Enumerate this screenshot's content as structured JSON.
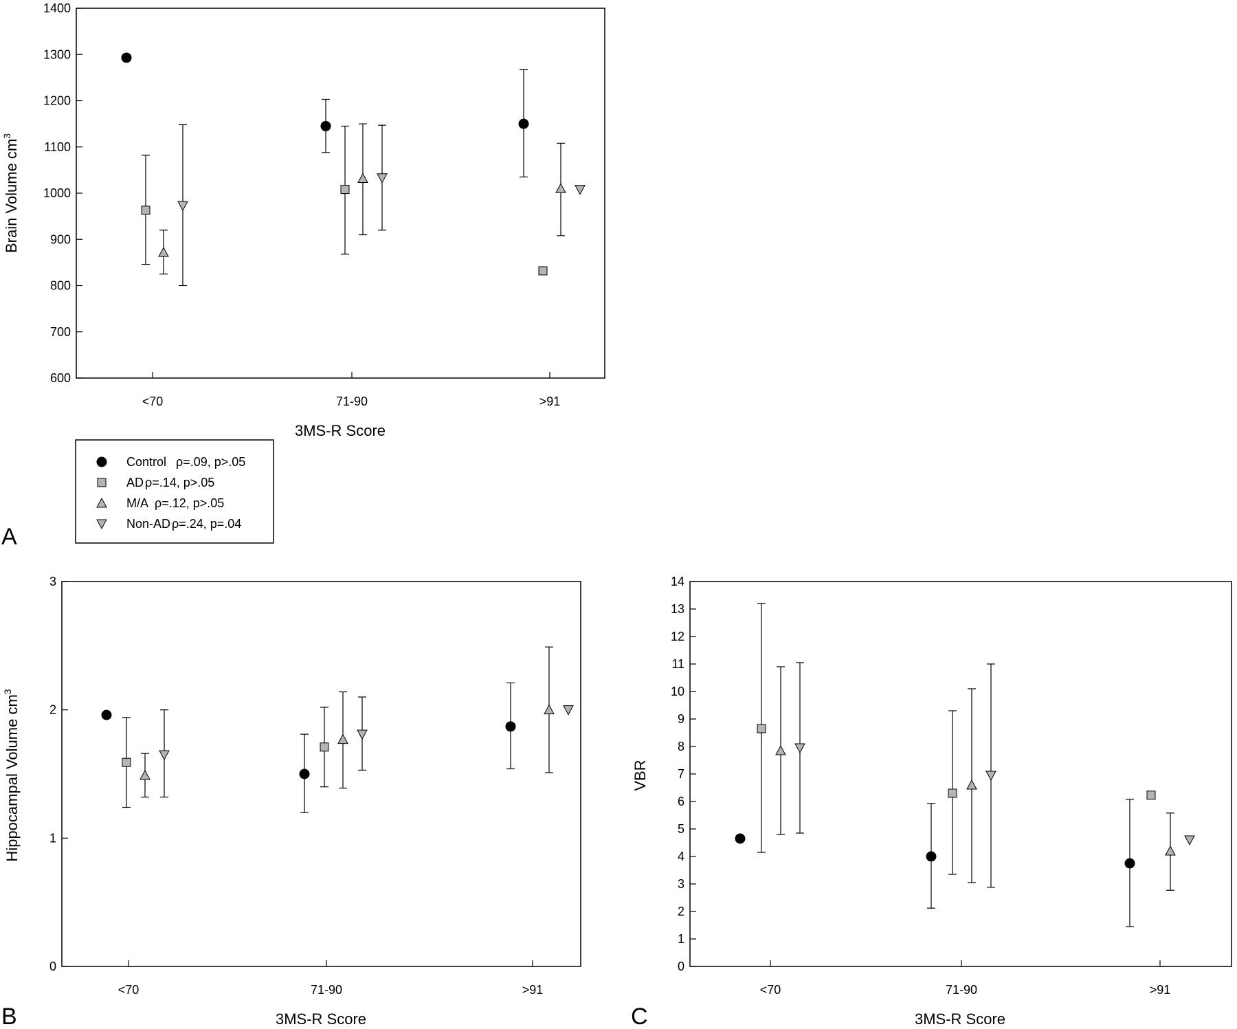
{
  "chart_data": [
    {
      "type": "scatter",
      "panel_label": "A",
      "categories": [
        "<70",
        "71-90",
        ">91"
      ],
      "xlabel": "3MS-R Score",
      "ylabel": "Brain Volume cm",
      "ylabel_superscript": "3",
      "ylim": [
        600,
        1400
      ],
      "yticks": [
        "600",
        "700",
        "800",
        "900",
        "1000",
        "1100",
        "1200",
        "1300",
        "1400"
      ],
      "grid": false,
      "series": [
        {
          "name": "Control",
          "marker": "circle",
          "values": [
            1293,
            1145,
            1150
          ],
          "err_low": [
            null,
            1088,
            1035
          ],
          "err_high": [
            null,
            1203,
            1267
          ]
        },
        {
          "name": "AD",
          "marker": "square",
          "values": [
            963,
            1008,
            832
          ],
          "err_low": [
            846,
            868,
            null
          ],
          "err_high": [
            1082,
            1145,
            null
          ]
        },
        {
          "name": "M/A",
          "marker": "triangle-up",
          "values": [
            872,
            1032,
            1010
          ],
          "err_low": [
            825,
            910,
            908
          ],
          "err_high": [
            920,
            1150,
            1108
          ]
        },
        {
          "name": "Non-AD",
          "marker": "triangle-down",
          "values": [
            973,
            1033,
            1008
          ],
          "err_low": [
            800,
            920,
            null
          ],
          "err_high": [
            1148,
            1147,
            null
          ]
        }
      ]
    },
    {
      "type": "scatter",
      "panel_label": "B",
      "categories": [
        "<70",
        "71-90",
        ">91"
      ],
      "xlabel": "3MS-R Score",
      "ylabel": "Hippocampal Volume cm",
      "ylabel_superscript": "3",
      "ylim": [
        0,
        3
      ],
      "yticks": [
        "0",
        "1",
        "2",
        "3"
      ],
      "grid": false,
      "series": [
        {
          "name": "Control",
          "marker": "circle",
          "values": [
            1.96,
            1.5,
            1.87
          ],
          "err_low": [
            null,
            1.2,
            1.54
          ],
          "err_high": [
            null,
            1.81,
            2.21
          ]
        },
        {
          "name": "AD",
          "marker": "square",
          "values": [
            1.59,
            1.71,
            null
          ],
          "err_low": [
            1.24,
            1.4,
            null
          ],
          "err_high": [
            1.94,
            2.02,
            null
          ]
        },
        {
          "name": "M/A",
          "marker": "triangle-up",
          "values": [
            1.49,
            1.77,
            2.0
          ],
          "err_low": [
            1.32,
            1.39,
            1.51
          ],
          "err_high": [
            1.66,
            2.14,
            2.49
          ]
        },
        {
          "name": "Non-AD",
          "marker": "triangle-down",
          "values": [
            1.65,
            1.81,
            2.0
          ],
          "err_low": [
            1.32,
            1.53,
            null
          ],
          "err_high": [
            2.0,
            2.1,
            null
          ]
        }
      ]
    },
    {
      "type": "scatter",
      "panel_label": "C",
      "categories": [
        "<70",
        "71-90",
        ">91"
      ],
      "xlabel": "3MS-R Score",
      "ylabel": "VBR",
      "ylim": [
        0,
        14
      ],
      "yticks": [
        "0",
        "1",
        "2",
        "3",
        "4",
        "5",
        "6",
        "7",
        "8",
        "9",
        "10",
        "11",
        "12",
        "13",
        "14"
      ],
      "grid": false,
      "series": [
        {
          "name": "Control",
          "marker": "circle",
          "values": [
            4.65,
            4.0,
            3.75
          ],
          "err_low": [
            null,
            2.12,
            1.45
          ],
          "err_high": [
            null,
            5.93,
            6.08
          ]
        },
        {
          "name": "AD",
          "marker": "square",
          "values": [
            8.65,
            6.3,
            6.23
          ],
          "err_low": [
            4.15,
            3.35,
            null
          ],
          "err_high": [
            13.2,
            9.3,
            null
          ]
        },
        {
          "name": "M/A",
          "marker": "triangle-up",
          "values": [
            7.85,
            6.6,
            4.2
          ],
          "err_low": [
            4.8,
            3.05,
            2.77
          ],
          "err_high": [
            10.9,
            10.1,
            5.58
          ]
        },
        {
          "name": "Non-AD",
          "marker": "triangle-down",
          "values": [
            7.95,
            6.95,
            4.6
          ],
          "err_low": [
            4.85,
            2.88,
            null
          ],
          "err_high": [
            11.05,
            11.0,
            null
          ]
        }
      ]
    }
  ],
  "legend": {
    "placement": "below panel A, left",
    "entries": [
      {
        "label": "Control",
        "stat": "ρ=.09, p>.05"
      },
      {
        "label": "AD",
        "stat": "ρ=.14, p>.05"
      },
      {
        "label": "M/A",
        "stat": "ρ=.12, p>.05"
      },
      {
        "label": "Non-AD",
        "stat": "ρ=.24, p=.04"
      }
    ]
  },
  "colors": {
    "control_fill": "#000000",
    "gray_fill": "#b4b4b4",
    "stroke": "#000000"
  }
}
